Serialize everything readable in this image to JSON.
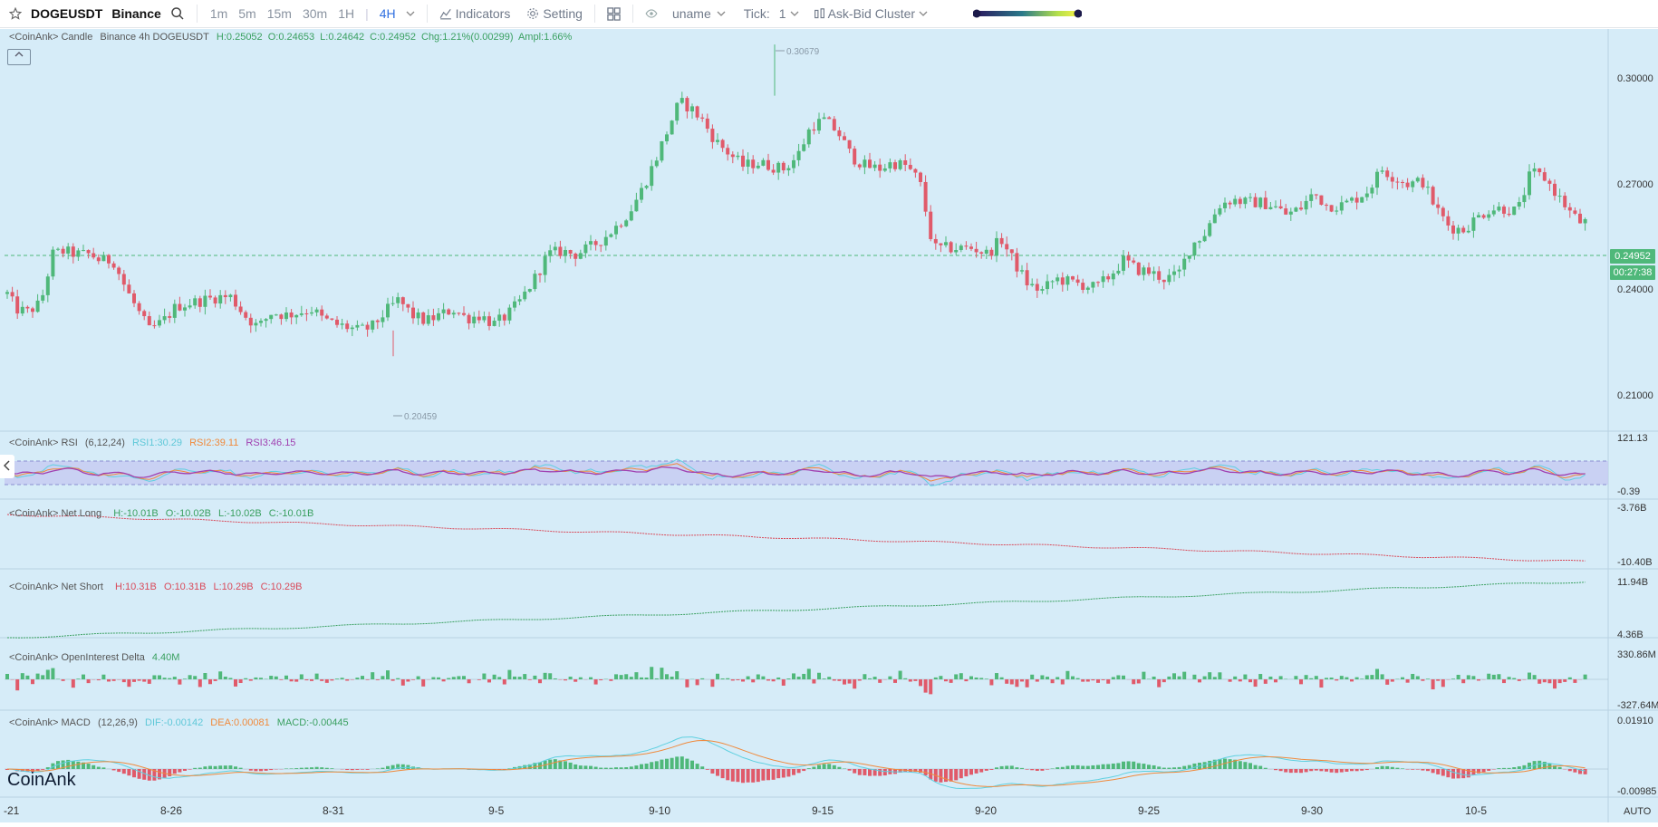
{
  "toolbar": {
    "symbol": "DOGEUSDT",
    "exchange": "Binance",
    "timeframes": [
      "1m",
      "5m",
      "15m",
      "30m",
      "1H",
      "4H"
    ],
    "active_timeframe": "4H",
    "indicators_label": "Indicators",
    "setting_label": "Setting",
    "user_label": "uname",
    "tick_label": "Tick:",
    "tick_value": "1",
    "cluster_label": "Ask-Bid Cluster"
  },
  "candle_legend": {
    "prefix": "<CoinAnk> Candle",
    "info": "Binance 4h DOGEUSDT",
    "high": "H:0.25052",
    "open": "O:0.24653",
    "low": "L:0.24642",
    "close": "C:0.24952",
    "change": "Chg:1.21%(0.00299)",
    "amplitude": "Ampl:1.66%"
  },
  "price_axis": {
    "ticks": [
      "0.30000",
      "0.27000",
      "0.24000",
      "0.21000"
    ],
    "current_price": "0.24952",
    "countdown": "00:27:38",
    "high_marker": "0.30679",
    "low_marker": "0.20459"
  },
  "rsi": {
    "prefix": "<CoinAnk> RSI",
    "params": "(6,12,24)",
    "rsi1": "RSI1:30.29",
    "rsi2": "RSI2:39.11",
    "rsi3": "RSI3:46.15",
    "axis_top": "121.13",
    "axis_bottom": "-0.39"
  },
  "net_long": {
    "prefix": "<CoinAnk> Net Long",
    "high": "H:-10.01B",
    "open": "O:-10.02B",
    "low": "L:-10.02B",
    "close": "C:-10.01B",
    "axis_top": "-3.76B",
    "axis_bottom": "-10.40B"
  },
  "net_short": {
    "prefix": "<CoinAnk> Net Short",
    "high": "H:10.31B",
    "open": "O:10.31B",
    "low": "L:10.29B",
    "close": "C:10.29B",
    "axis_top": "11.94B",
    "axis_bottom": "4.36B"
  },
  "oi_delta": {
    "prefix": "<CoinAnk> OpenInterest Delta",
    "value": "4.40M",
    "axis_top": "330.86M",
    "axis_bottom": "-327.64M"
  },
  "macd": {
    "prefix": "<CoinAnk> MACD",
    "params": "(12,26,9)",
    "dif": "DIF:-0.00142",
    "dea": "DEA:0.00081",
    "macd": "MACD:-0.00445",
    "axis_top": "0.01910",
    "axis_bottom": "-0.00985"
  },
  "time_axis": {
    "labels": [
      "-21",
      "8-26",
      "8-31",
      "9-5",
      "9-10",
      "9-15",
      "9-20",
      "9-25",
      "9-30",
      "10-5"
    ],
    "auto_label": "AUTO"
  },
  "watermark": "CoinAnk",
  "colors": {
    "up": "#4fb87a",
    "down": "#e05a6a",
    "accent": "#2f6fe0",
    "background": "#d6ecf8",
    "rsi1": "#5fd0e0",
    "rsi2": "#f08a3c",
    "rsi3": "#a040b0"
  },
  "chart_data": {
    "type": "candlestick",
    "title": "Binance 4h DOGEUSDT",
    "x_labels": [
      "-21",
      "8-26",
      "8-31",
      "9-5",
      "9-10",
      "9-15",
      "9-20",
      "9-25",
      "9-30",
      "10-5"
    ],
    "ylim": [
      0.2,
      0.31
    ],
    "price_ticks": [
      0.3,
      0.27,
      0.24,
      0.21
    ],
    "close_path": [
      [
        8,
        0.225
      ],
      [
        18,
        0.22
      ],
      [
        30,
        0.219
      ],
      [
        45,
        0.222
      ],
      [
        58,
        0.238
      ],
      [
        70,
        0.239
      ],
      [
        85,
        0.238
      ],
      [
        100,
        0.238
      ],
      [
        110,
        0.236
      ],
      [
        125,
        0.236
      ],
      [
        140,
        0.226
      ],
      [
        155,
        0.218
      ],
      [
        165,
        0.213
      ],
      [
        180,
        0.216
      ],
      [
        195,
        0.221
      ],
      [
        210,
        0.222
      ],
      [
        225,
        0.223
      ],
      [
        240,
        0.224
      ],
      [
        255,
        0.224
      ],
      [
        270,
        0.218
      ],
      [
        285,
        0.214
      ],
      [
        300,
        0.219
      ],
      [
        315,
        0.218
      ],
      [
        330,
        0.219
      ],
      [
        345,
        0.22
      ],
      [
        355,
        0.217
      ],
      [
        370,
        0.215
      ],
      [
        385,
        0.214
      ],
      [
        395,
        0.213
      ],
      [
        410,
        0.214
      ],
      [
        425,
        0.219
      ],
      [
        440,
        0.223
      ],
      [
        455,
        0.218
      ],
      [
        470,
        0.216
      ],
      [
        485,
        0.218
      ],
      [
        500,
        0.22
      ],
      [
        515,
        0.217
      ],
      [
        530,
        0.218
      ],
      [
        545,
        0.215
      ],
      [
        560,
        0.218
      ],
      [
        575,
        0.223
      ],
      [
        590,
        0.23
      ],
      [
        605,
        0.238
      ],
      [
        620,
        0.239
      ],
      [
        635,
        0.238
      ],
      [
        650,
        0.24
      ],
      [
        665,
        0.243
      ],
      [
        680,
        0.247
      ],
      [
        695,
        0.252
      ],
      [
        710,
        0.26
      ],
      [
        725,
        0.27
      ],
      [
        740,
        0.281
      ],
      [
        750,
        0.288
      ],
      [
        762,
        0.286
      ],
      [
        775,
        0.282
      ],
      [
        790,
        0.275
      ],
      [
        805,
        0.271
      ],
      [
        820,
        0.267
      ],
      [
        835,
        0.268
      ],
      [
        850,
        0.267
      ],
      [
        865,
        0.266
      ],
      [
        880,
        0.27
      ],
      [
        895,
        0.28
      ],
      [
        910,
        0.282
      ],
      [
        925,
        0.278
      ],
      [
        940,
        0.27
      ],
      [
        955,
        0.267
      ],
      [
        970,
        0.266
      ],
      [
        985,
        0.268
      ],
      [
        1000,
        0.267
      ],
      [
        1015,
        0.262
      ],
      [
        1030,
        0.24
      ],
      [
        1045,
        0.24
      ],
      [
        1060,
        0.24
      ],
      [
        1075,
        0.24
      ],
      [
        1090,
        0.238
      ],
      [
        1105,
        0.243
      ],
      [
        1120,
        0.235
      ],
      [
        1135,
        0.228
      ],
      [
        1150,
        0.226
      ],
      [
        1165,
        0.23
      ],
      [
        1180,
        0.229
      ],
      [
        1195,
        0.228
      ],
      [
        1210,
        0.227
      ],
      [
        1225,
        0.231
      ],
      [
        1240,
        0.236
      ],
      [
        1255,
        0.233
      ],
      [
        1270,
        0.232
      ],
      [
        1285,
        0.23
      ],
      [
        1300,
        0.231
      ],
      [
        1315,
        0.241
      ],
      [
        1330,
        0.245
      ],
      [
        1345,
        0.254
      ],
      [
        1360,
        0.256
      ],
      [
        1375,
        0.255
      ],
      [
        1390,
        0.255
      ],
      [
        1405,
        0.254
      ],
      [
        1420,
        0.251
      ],
      [
        1435,
        0.253
      ],
      [
        1450,
        0.258
      ],
      [
        1465,
        0.254
      ],
      [
        1480,
        0.254
      ],
      [
        1495,
        0.256
      ],
      [
        1510,
        0.259
      ],
      [
        1525,
        0.266
      ],
      [
        1540,
        0.263
      ],
      [
        1555,
        0.261
      ],
      [
        1570,
        0.262
      ],
      [
        1585,
        0.253
      ],
      [
        1600,
        0.247
      ],
      [
        1615,
        0.246
      ],
      [
        1630,
        0.25
      ],
      [
        1645,
        0.253
      ],
      [
        1660,
        0.253
      ],
      [
        1675,
        0.252
      ],
      [
        1690,
        0.265
      ],
      [
        1705,
        0.263
      ],
      [
        1720,
        0.257
      ],
      [
        1735,
        0.251
      ],
      [
        1750,
        0.247
      ],
      [
        1752,
        0.2495
      ]
    ],
    "high": 0.30679,
    "low": 0.20459,
    "last_close": 0.24952
  }
}
